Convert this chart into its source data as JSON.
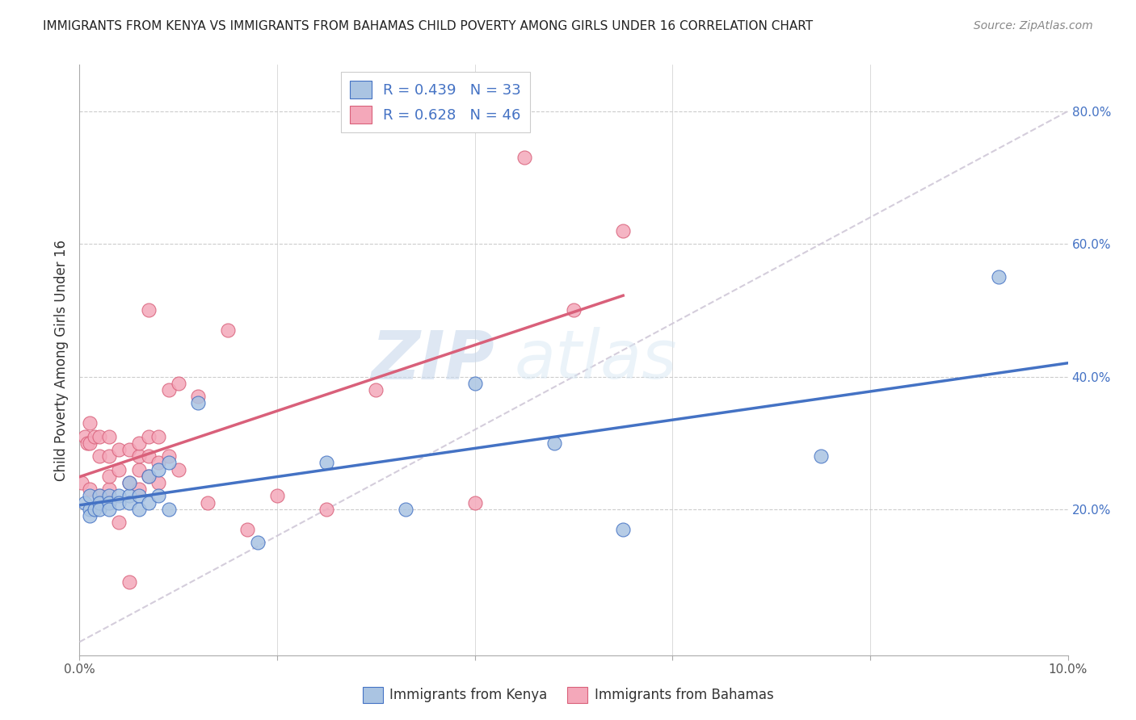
{
  "title": "IMMIGRANTS FROM KENYA VS IMMIGRANTS FROM BAHAMAS CHILD POVERTY AMONG GIRLS UNDER 16 CORRELATION CHART",
  "source": "Source: ZipAtlas.com",
  "ylabel": "Child Poverty Among Girls Under 16",
  "xlim": [
    0.0,
    0.1
  ],
  "ylim": [
    -0.02,
    0.87
  ],
  "kenya_R": 0.439,
  "kenya_N": 33,
  "bahamas_R": 0.628,
  "bahamas_N": 46,
  "kenya_color": "#aac4e2",
  "kenya_line_color": "#4472c4",
  "bahamas_color": "#f4a8ba",
  "bahamas_line_color": "#d9607a",
  "diagonal_color": "#d0c8d8",
  "watermark_zip": "ZIP",
  "watermark_atlas": "atlas",
  "kenya_x": [
    0.0005,
    0.001,
    0.001,
    0.001,
    0.0015,
    0.002,
    0.002,
    0.002,
    0.003,
    0.003,
    0.003,
    0.004,
    0.004,
    0.005,
    0.005,
    0.005,
    0.006,
    0.006,
    0.007,
    0.007,
    0.008,
    0.008,
    0.009,
    0.009,
    0.012,
    0.018,
    0.025,
    0.033,
    0.04,
    0.048,
    0.055,
    0.075,
    0.093
  ],
  "kenya_y": [
    0.21,
    0.2,
    0.22,
    0.19,
    0.2,
    0.22,
    0.21,
    0.2,
    0.22,
    0.21,
    0.2,
    0.22,
    0.21,
    0.22,
    0.24,
    0.21,
    0.22,
    0.2,
    0.25,
    0.21,
    0.26,
    0.22,
    0.27,
    0.2,
    0.36,
    0.15,
    0.27,
    0.2,
    0.39,
    0.3,
    0.17,
    0.28,
    0.55
  ],
  "bahamas_x": [
    0.0002,
    0.0005,
    0.0008,
    0.001,
    0.001,
    0.001,
    0.0015,
    0.002,
    0.002,
    0.002,
    0.003,
    0.003,
    0.003,
    0.003,
    0.004,
    0.004,
    0.004,
    0.005,
    0.005,
    0.005,
    0.006,
    0.006,
    0.006,
    0.006,
    0.007,
    0.007,
    0.007,
    0.007,
    0.008,
    0.008,
    0.008,
    0.009,
    0.009,
    0.01,
    0.01,
    0.012,
    0.013,
    0.015,
    0.017,
    0.02,
    0.025,
    0.03,
    0.04,
    0.045,
    0.05,
    0.055
  ],
  "bahamas_y": [
    0.24,
    0.31,
    0.3,
    0.23,
    0.3,
    0.33,
    0.31,
    0.22,
    0.28,
    0.31,
    0.23,
    0.25,
    0.28,
    0.31,
    0.18,
    0.26,
    0.29,
    0.09,
    0.24,
    0.29,
    0.23,
    0.26,
    0.28,
    0.3,
    0.25,
    0.28,
    0.31,
    0.5,
    0.24,
    0.27,
    0.31,
    0.28,
    0.38,
    0.26,
    0.39,
    0.37,
    0.21,
    0.47,
    0.17,
    0.22,
    0.2,
    0.38,
    0.21,
    0.73,
    0.5,
    0.62
  ]
}
